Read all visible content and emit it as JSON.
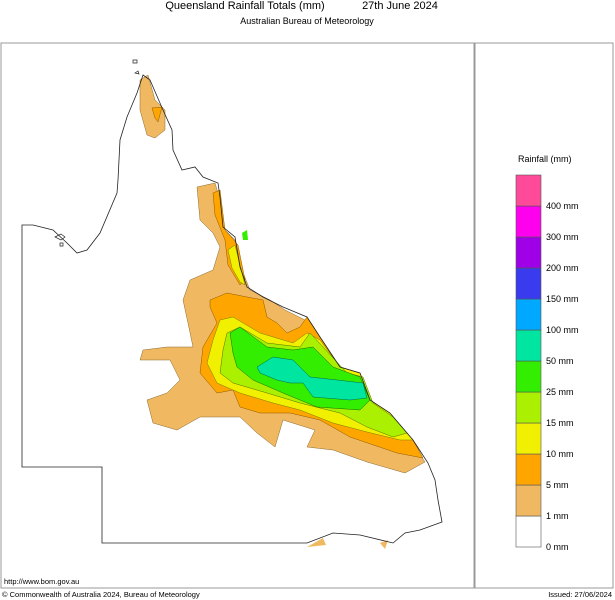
{
  "header": {
    "title": "Queensland Rainfall Totals (mm)",
    "date": "27th June 2024",
    "subtitle": "Australian Bureau of Meteorology"
  },
  "legend": {
    "title": "Rainfall (mm)",
    "bins": [
      {
        "label": "0 mm",
        "color": "#ffffff"
      },
      {
        "label": "1 mm",
        "color": "#f0b860"
      },
      {
        "label": "5 mm",
        "color": "#ffa500"
      },
      {
        "label": "10 mm",
        "color": "#f0f000"
      },
      {
        "label": "15 mm",
        "color": "#aaf000"
      },
      {
        "label": "25 mm",
        "color": "#33ee00"
      },
      {
        "label": "50 mm",
        "color": "#00e5a0"
      },
      {
        "label": "100 mm",
        "color": "#00a8ff"
      },
      {
        "label": "150 mm",
        "color": "#3a3aee"
      },
      {
        "label": "200 mm",
        "color": "#a000e8"
      },
      {
        "label": "300 mm",
        "color": "#ff00ee"
      },
      {
        "label": "400 mm",
        "color": "#ff4a9a"
      }
    ]
  },
  "footer": {
    "url": "http://www.bom.gov.au",
    "copyright": "© Commonwealth of Australia 2024, Bureau of Meteorology",
    "issued": "Issued: 27/06/2024"
  }
}
